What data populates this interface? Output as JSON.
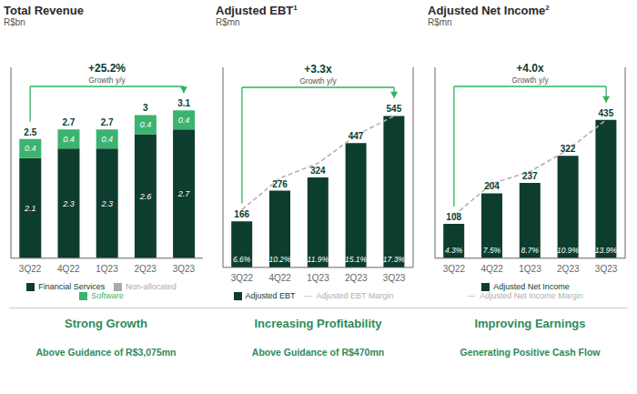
{
  "chart_data": [
    {
      "type": "bar",
      "title": "Total Revenue",
      "subtitle": "R$bn",
      "stacked": true,
      "data_labels": true,
      "grid": false,
      "tick_labels": "x",
      "annotations": [
        "+25.2%",
        "Growth y/y"
      ],
      "categories": [
        "3Q22",
        "4Q22",
        "1Q23",
        "2Q23",
        "3Q23"
      ],
      "series": [
        {
          "name": "Financial Services",
          "type": "bar",
          "color": "#0d3d2e",
          "values": [
            2.1,
            2.3,
            2.3,
            2.6,
            2.7
          ]
        },
        {
          "name": "Software",
          "type": "bar",
          "color": "#3cb371",
          "values": [
            0.4,
            0.4,
            0.4,
            0.4,
            0.4
          ]
        },
        {
          "name": "Non-allocated",
          "type": "bar",
          "color": "#aaaaaa",
          "values": [
            null,
            null,
            null,
            null,
            null
          ]
        }
      ],
      "totals": [
        2.5,
        2.7,
        2.7,
        3.0,
        3.1
      ],
      "ylim": [
        0,
        4.0
      ],
      "caption": "Strong Growth",
      "caption_sub": "Above Guidance of R$3,075mn"
    },
    {
      "type": "bar",
      "title": "Adjusted EBT",
      "title_super": "1",
      "subtitle": "R$mn",
      "stacked": false,
      "data_labels": true,
      "grid": false,
      "tick_labels": "x",
      "annotations": [
        "+3.3x",
        "Growth y/y"
      ],
      "categories": [
        "3Q22",
        "4Q22",
        "1Q23",
        "2Q23",
        "3Q23"
      ],
      "series": [
        {
          "name": "Adjusted EBT",
          "type": "bar",
          "color": "#0d3d2e",
          "values": [
            166,
            276,
            324,
            447,
            545
          ]
        },
        {
          "name": "Adjusted EBT Margin",
          "type": "line",
          "axis": "y2",
          "color": "#b0b0b0",
          "line_style": "dashed",
          "values": [
            6.6,
            10.2,
            11.9,
            15.1,
            17.3
          ],
          "value_labels": [
            "6.6%",
            "10.2%",
            "11.9%",
            "15.1%",
            "17.3%"
          ]
        }
      ],
      "ylim": [
        0,
        720
      ],
      "y2lim": [
        0,
        22.855045871559632
      ],
      "caption": "Increasing Profitability",
      "caption_sub": "Above Guidance of R$470mn"
    },
    {
      "type": "bar",
      "title": "Adjusted Net Income",
      "title_super": "2",
      "subtitle": "R$mn",
      "stacked": false,
      "data_labels": true,
      "grid": false,
      "tick_labels": "x",
      "annotations": [
        "+4.0x",
        "Growth y/y"
      ],
      "categories": [
        "3Q22",
        "4Q22",
        "1Q23",
        "2Q23",
        "3Q23"
      ],
      "series": [
        {
          "name": "Adjusted Net Income",
          "type": "bar",
          "color": "#0d3d2e",
          "values": [
            108,
            204,
            237,
            322,
            435
          ]
        },
        {
          "name": "Adjusted Net Income Margin",
          "type": "line",
          "axis": "y2",
          "color": "#b0b0b0",
          "line_style": "dashed",
          "values": [
            4.3,
            7.5,
            8.7,
            10.9,
            13.9
          ],
          "value_labels": [
            "4.3%",
            "7.5%",
            "8.7%",
            "10.9%",
            "13.9%"
          ]
        }
      ],
      "ylim": [
        0,
        600
      ],
      "y2lim": [
        0,
        19.17241379310345
      ],
      "caption": "Improving Earnings",
      "caption_sub": "Generating Positive Cash Flow"
    }
  ]
}
